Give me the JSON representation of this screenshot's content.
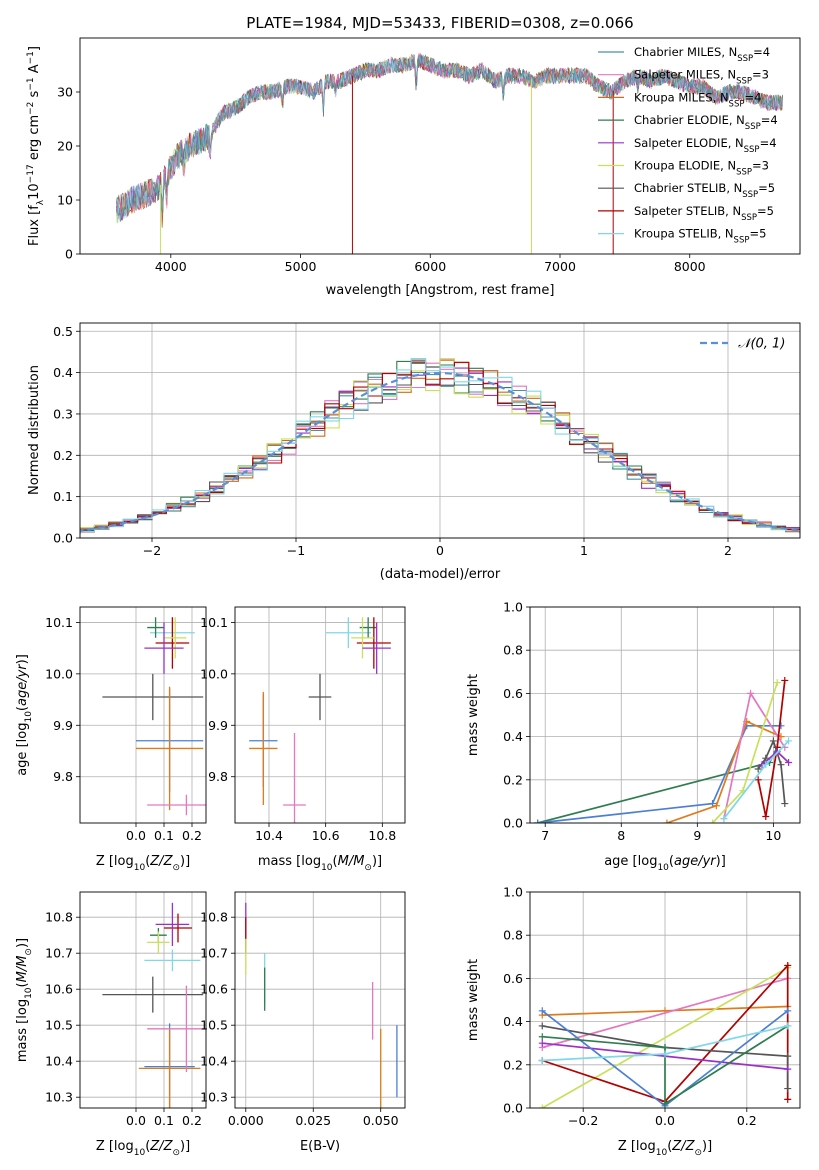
{
  "title": "PLATE=1984, MJD=53433, FIBERID=0308, z=0.066",
  "colors": {
    "chabrier_miles": "#4a90a4",
    "salpeter_miles": "#e377c2",
    "kroupa_miles": "#d2691e",
    "chabrier_elodie": "#2e7d4f",
    "salpeter_elodie": "#9b30c8",
    "kroupa_elodie": "#c8e05a",
    "chabrier_stelib": "#555555",
    "salpeter_stelib": "#b30000",
    "kroupa_stelib": "#7fd8e8",
    "gauss": "#5b8fd6",
    "blue": "#4a7fd6",
    "orange": "#e07b1a"
  },
  "chart_data": [
    {
      "type": "line",
      "panel": "spectrum",
      "title": "PLATE=1984, MJD=53433, FIBERID=0308, z=0.066",
      "xlabel": "wavelength [Angstrom, rest frame]",
      "ylabel": "Flux [fλ10⁻¹⁷ erg cm⁻² s⁻¹ A⁻¹]",
      "xlim": [
        3300,
        8850
      ],
      "ylim": [
        0,
        40
      ],
      "xticks": [
        4000,
        5000,
        6000,
        7000,
        8000
      ],
      "yticks": [
        0,
        10,
        20,
        30
      ],
      "legend_position": "top-right",
      "legend": [
        {
          "label": "Chabrier MILES, N",
          "sub": "SSP",
          "suffix": "=4",
          "color_key": "chabrier_miles"
        },
        {
          "label": "Salpeter MILES, N",
          "sub": "SSP",
          "suffix": "=3",
          "color_key": "salpeter_miles"
        },
        {
          "label": "Kroupa MILES, N",
          "sub": "SSP",
          "suffix": "=4",
          "color_key": "kroupa_miles"
        },
        {
          "label": "Chabrier ELODIE, N",
          "sub": "SSP",
          "suffix": "=4",
          "color_key": "chabrier_elodie"
        },
        {
          "label": "Salpeter ELODIE, N",
          "sub": "SSP",
          "suffix": "=4",
          "color_key": "salpeter_elodie"
        },
        {
          "label": "Kroupa ELODIE, N",
          "sub": "SSP",
          "suffix": "=3",
          "color_key": "kroupa_elodie"
        },
        {
          "label": "Chabrier STELIB, N",
          "sub": "SSP",
          "suffix": "=5",
          "color_key": "chabrier_stelib"
        },
        {
          "label": "Salpeter STELIB, N",
          "sub": "SSP",
          "suffix": "=5",
          "color_key": "salpeter_stelib"
        },
        {
          "label": "Kroupa STELIB, N",
          "sub": "SSP",
          "suffix": "=5",
          "color_key": "kroupa_stelib"
        }
      ],
      "continuum": [
        [
          3580,
          8
        ],
        [
          3700,
          10
        ],
        [
          3800,
          11
        ],
        [
          3900,
          12
        ],
        [
          3950,
          14
        ],
        [
          4050,
          18
        ],
        [
          4150,
          20
        ],
        [
          4300,
          22
        ],
        [
          4400,
          26
        ],
        [
          4500,
          27
        ],
        [
          4600,
          29
        ],
        [
          4700,
          30
        ],
        [
          4800,
          30
        ],
        [
          4900,
          31
        ],
        [
          5000,
          31
        ],
        [
          5100,
          30
        ],
        [
          5200,
          32
        ],
        [
          5300,
          32
        ],
        [
          5400,
          33
        ],
        [
          5500,
          34
        ],
        [
          5600,
          34
        ],
        [
          5700,
          35
        ],
        [
          5800,
          35
        ],
        [
          5900,
          36
        ],
        [
          6000,
          35
        ],
        [
          6100,
          34
        ],
        [
          6200,
          34
        ],
        [
          6300,
          33
        ],
        [
          6400,
          34
        ],
        [
          6500,
          32
        ],
        [
          6600,
          33
        ],
        [
          6700,
          33
        ],
        [
          6800,
          32
        ],
        [
          6900,
          33
        ],
        [
          7000,
          33
        ],
        [
          7100,
          33
        ],
        [
          7200,
          33
        ],
        [
          7300,
          31
        ],
        [
          7400,
          30
        ],
        [
          7500,
          32
        ],
        [
          7600,
          33
        ],
        [
          7700,
          32
        ],
        [
          7800,
          33
        ],
        [
          7900,
          32
        ],
        [
          8000,
          31
        ],
        [
          8100,
          31
        ],
        [
          8200,
          29
        ],
        [
          8300,
          30
        ],
        [
          8400,
          30
        ],
        [
          8500,
          29
        ],
        [
          8600,
          28
        ],
        [
          8700,
          28
        ]
      ]
    },
    {
      "type": "line",
      "panel": "residuals",
      "xlabel": "(data-model)/error",
      "ylabel": "Normed distribution",
      "xlim": [
        -2.5,
        2.5
      ],
      "ylim": [
        0,
        0.52
      ],
      "xticks": [
        -2,
        -1,
        0,
        1,
        2
      ],
      "yticks": [
        0.0,
        0.1,
        0.2,
        0.3,
        0.4,
        0.5
      ],
      "legend_position": "top-right",
      "legend": [
        {
          "label": "𝒩(0, 1)",
          "color_key": "gauss"
        }
      ],
      "gauss_sigma": 1.0
    },
    {
      "type": "scatter",
      "panel": "age_vs_Z",
      "xlabel": "Z [log₁₀(Z/Z⊙)]",
      "ylabel": "age  [log₁₀(age/yr)]",
      "xlim": [
        -0.2,
        0.25
      ],
      "ylim": [
        9.71,
        10.13
      ],
      "xticks": [
        0.0,
        0.1,
        0.2
      ],
      "yticks": [
        9.8,
        9.9,
        10.0,
        10.1
      ],
      "points": [
        {
          "x": 0.13,
          "y": 10.08,
          "xerr": 0.08,
          "yerr": 0.03,
          "color_key": "kroupa_stelib"
        },
        {
          "x": 0.07,
          "y": 10.09,
          "xerr": 0.03,
          "yerr": 0.02,
          "color_key": "chabrier_elodie"
        },
        {
          "x": 0.13,
          "y": 10.06,
          "xerr": 0.06,
          "yerr": 0.05,
          "color_key": "salpeter_stelib"
        },
        {
          "x": 0.14,
          "y": 10.07,
          "xerr": 0.04,
          "yerr": 0.04,
          "color_key": "kroupa_elodie"
        },
        {
          "x": 0.1,
          "y": 10.05,
          "xerr": 0.07,
          "yerr": 0.05,
          "color_key": "salpeter_elodie"
        },
        {
          "x": 0.06,
          "y": 9.955,
          "xerr": 0.18,
          "yerr": 0.045,
          "color_key": "chabrier_stelib"
        },
        {
          "x": 0.12,
          "y": 9.87,
          "xerr": 0.12,
          "yerr": 0.1,
          "color_key": "blue"
        },
        {
          "x": 0.12,
          "y": 9.855,
          "xerr": 0.12,
          "yerr": 0.12,
          "color_key": "orange"
        },
        {
          "x": 0.18,
          "y": 9.745,
          "xerr": 0.14,
          "yerr": 0.02,
          "color_key": "salpeter_miles"
        }
      ]
    },
    {
      "type": "scatter",
      "panel": "age_vs_mass",
      "xlabel": "mass [log₁₀(M/M⊙)]",
      "ylabel": "",
      "xlim": [
        10.28,
        10.88
      ],
      "ylim": [
        9.71,
        10.13
      ],
      "xticks": [
        10.4,
        10.6,
        10.8
      ],
      "yticks": [
        9.8,
        9.9,
        10.0,
        10.1
      ],
      "points": [
        {
          "x": 10.68,
          "y": 10.08,
          "xerr": 0.08,
          "yerr": 0.03,
          "color_key": "kroupa_stelib"
        },
        {
          "x": 10.75,
          "y": 10.09,
          "xerr": 0.03,
          "yerr": 0.02,
          "color_key": "chabrier_elodie"
        },
        {
          "x": 10.77,
          "y": 10.06,
          "xerr": 0.06,
          "yerr": 0.05,
          "color_key": "salpeter_stelib"
        },
        {
          "x": 10.73,
          "y": 10.07,
          "xerr": 0.04,
          "yerr": 0.04,
          "color_key": "kroupa_elodie"
        },
        {
          "x": 10.78,
          "y": 10.05,
          "xerr": 0.05,
          "yerr": 0.05,
          "color_key": "salpeter_elodie"
        },
        {
          "x": 10.58,
          "y": 9.955,
          "xerr": 0.04,
          "yerr": 0.045,
          "color_key": "chabrier_stelib"
        },
        {
          "x": 10.38,
          "y": 9.87,
          "xerr": 0.05,
          "yerr": 0.09,
          "color_key": "blue"
        },
        {
          "x": 10.38,
          "y": 9.855,
          "xerr": 0.05,
          "yerr": 0.11,
          "color_key": "orange"
        },
        {
          "x": 10.49,
          "y": 9.745,
          "xerr": 0.04,
          "yerr": 0.14,
          "color_key": "salpeter_miles"
        }
      ]
    },
    {
      "type": "line",
      "panel": "mass_weight_vs_age",
      "xlabel": "age  [log₁₀(age/yr)]",
      "ylabel": "mass weight",
      "xlim": [
        6.8,
        10.35
      ],
      "ylim": [
        0,
        1.0
      ],
      "xticks": [
        7,
        8,
        9,
        10
      ],
      "yticks": [
        0.0,
        0.2,
        0.4,
        0.6,
        0.8,
        1.0
      ],
      "series": [
        {
          "color_key": "chabrier_elodie",
          "x": [
            6.9,
            9.95,
            10.05
          ],
          "y": [
            0.0,
            0.28,
            0.35
          ]
        },
        {
          "color_key": "blue",
          "x": [
            6.9,
            9.2,
            9.65,
            10.1
          ],
          "y": [
            0.0,
            0.09,
            0.45,
            0.45
          ]
        },
        {
          "color_key": "orange",
          "x": [
            8.6,
            9.25,
            9.65,
            10.1
          ],
          "y": [
            0.0,
            0.08,
            0.47,
            0.4
          ]
        },
        {
          "color_key": "salpeter_miles",
          "x": [
            9.35,
            9.7,
            10.15
          ],
          "y": [
            0.02,
            0.6,
            0.35
          ]
        },
        {
          "color_key": "kroupa_elodie",
          "x": [
            9.2,
            9.6,
            10.05
          ],
          "y": [
            0.0,
            0.15,
            0.65
          ]
        },
        {
          "color_key": "salpeter_stelib",
          "x": [
            9.8,
            9.9,
            10.05,
            10.15
          ],
          "y": [
            0.2,
            0.03,
            0.35,
            0.66
          ]
        },
        {
          "color_key": "chabrier_stelib",
          "x": [
            9.8,
            9.9,
            10.0,
            10.1,
            10.15
          ],
          "y": [
            0.25,
            0.3,
            0.38,
            0.27,
            0.09
          ]
        },
        {
          "color_key": "salpeter_elodie",
          "x": [
            9.85,
            10.05,
            10.2
          ],
          "y": [
            0.27,
            0.33,
            0.28
          ]
        },
        {
          "color_key": "kroupa_stelib",
          "x": [
            9.35,
            9.9,
            10.2
          ],
          "y": [
            0.02,
            0.27,
            0.38
          ]
        }
      ]
    },
    {
      "type": "scatter",
      "panel": "mass_vs_Z",
      "xlabel": "Z [log₁₀(Z/Z⊙)]",
      "ylabel": "mass [log₁₀(M/M⊙)]",
      "xlim": [
        -0.2,
        0.25
      ],
      "ylim": [
        10.27,
        10.87
      ],
      "xticks": [
        0.0,
        0.1,
        0.2
      ],
      "yticks": [
        10.3,
        10.4,
        10.5,
        10.6,
        10.7,
        10.8
      ],
      "points": [
        {
          "x": 0.13,
          "y": 10.68,
          "xerr": 0.1,
          "yerr": 0.03,
          "color_key": "kroupa_stelib"
        },
        {
          "x": 0.08,
          "y": 10.75,
          "xerr": 0.03,
          "yerr": 0.02,
          "color_key": "chabrier_elodie"
        },
        {
          "x": 0.15,
          "y": 10.77,
          "xerr": 0.05,
          "yerr": 0.04,
          "color_key": "salpeter_stelib"
        },
        {
          "x": 0.08,
          "y": 10.73,
          "xerr": 0.04,
          "yerr": 0.03,
          "color_key": "kroupa_elodie"
        },
        {
          "x": 0.13,
          "y": 10.78,
          "xerr": 0.06,
          "yerr": 0.06,
          "color_key": "salpeter_elodie"
        },
        {
          "x": 0.06,
          "y": 10.585,
          "xerr": 0.18,
          "yerr": 0.05,
          "color_key": "chabrier_stelib"
        },
        {
          "x": 0.12,
          "y": 10.385,
          "xerr": 0.09,
          "yerr": 0.12,
          "color_key": "blue"
        },
        {
          "x": 0.12,
          "y": 10.38,
          "xerr": 0.11,
          "yerr": 0.11,
          "color_key": "orange"
        },
        {
          "x": 0.18,
          "y": 10.49,
          "xerr": 0.14,
          "yerr": 0.12,
          "color_key": "salpeter_miles"
        }
      ]
    },
    {
      "type": "scatter",
      "panel": "mass_vs_EBV",
      "xlabel": "E(B-V)",
      "ylabel": "",
      "xlim": [
        -0.004,
        0.059
      ],
      "ylim": [
        10.27,
        10.87
      ],
      "xticks": [
        0.0,
        0.025,
        0.05
      ],
      "xtick_labels": [
        "0.000",
        "0.025",
        "0.050"
      ],
      "yticks": [
        10.3,
        10.4,
        10.5,
        10.6,
        10.7,
        10.8
      ],
      "points": [
        {
          "x": 0.0,
          "y": 10.78,
          "xerr": 0.0,
          "yerr": 0.06,
          "color_key": "salpeter_elodie"
        },
        {
          "x": 0.0,
          "y": 10.75,
          "xerr": 0.0,
          "yerr": 0.05,
          "color_key": "salpeter_stelib"
        },
        {
          "x": 0.0,
          "y": 10.69,
          "xerr": 0.0,
          "yerr": 0.05,
          "color_key": "kroupa_elodie"
        },
        {
          "x": 0.007,
          "y": 10.63,
          "xerr": 0.0,
          "yerr": 0.07,
          "color_key": "kroupa_stelib"
        },
        {
          "x": 0.007,
          "y": 10.6,
          "xerr": 0.0,
          "yerr": 0.06,
          "color_key": "chabrier_elodie"
        },
        {
          "x": 0.047,
          "y": 10.54,
          "xerr": 0.0,
          "yerr": 0.08,
          "color_key": "salpeter_miles"
        },
        {
          "x": 0.05,
          "y": 10.38,
          "xerr": 0.0,
          "yerr": 0.11,
          "color_key": "orange"
        },
        {
          "x": 0.056,
          "y": 10.4,
          "xerr": 0.0,
          "yerr": 0.1,
          "color_key": "blue"
        }
      ]
    },
    {
      "type": "line",
      "panel": "mass_weight_vs_Z",
      "xlabel": "Z [log₁₀(Z/Z⊙)]",
      "ylabel": "mass weight",
      "xlim": [
        -0.33,
        0.33
      ],
      "ylim": [
        0,
        1.0
      ],
      "xticks": [
        -0.2,
        0.0,
        0.2
      ],
      "yticks": [
        0.0,
        0.2,
        0.4,
        0.6,
        0.8,
        1.0
      ],
      "series": [
        {
          "color_key": "orange",
          "x": [
            -0.3,
            0.0,
            0.3
          ],
          "y": [
            0.43,
            0.45,
            0.47
          ]
        },
        {
          "color_key": "salpeter_miles",
          "x": [
            -0.3,
            0.3
          ],
          "y": [
            0.28,
            0.6
          ]
        },
        {
          "color_key": "kroupa_elodie",
          "x": [
            -0.3,
            0.3
          ],
          "y": [
            0.0,
            0.65
          ]
        },
        {
          "color_key": "salpeter_stelib",
          "x": [
            -0.3,
            0.0,
            0.3,
            0.3
          ],
          "y": [
            0.22,
            0.03,
            0.66,
            0.04
          ]
        },
        {
          "color_key": "chabrier_stelib",
          "x": [
            -0.3,
            0.0,
            0.3,
            0.3
          ],
          "y": [
            0.38,
            0.28,
            0.24,
            0.09
          ]
        },
        {
          "color_key": "salpeter_elodie",
          "x": [
            -0.3,
            0.3
          ],
          "y": [
            0.3,
            0.18
          ]
        },
        {
          "color_key": "blue",
          "x": [
            -0.3,
            0.0,
            0.3
          ],
          "y": [
            0.45,
            0.01,
            0.45
          ]
        },
        {
          "color_key": "chabrier_elodie",
          "x": [
            -0.3,
            0.0,
            0.0,
            0.3
          ],
          "y": [
            0.33,
            0.28,
            0.02,
            0.38
          ]
        },
        {
          "color_key": "kroupa_stelib",
          "x": [
            -0.3,
            0.0,
            0.3
          ],
          "y": [
            0.22,
            0.25,
            0.38
          ]
        }
      ]
    }
  ]
}
